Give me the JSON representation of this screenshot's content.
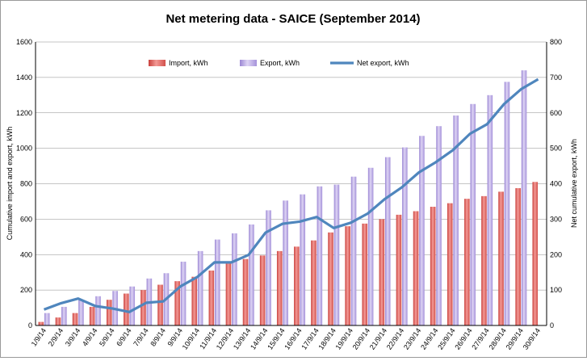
{
  "chart_data": {
    "type": "bar",
    "title": "Net metering data - SAICE (September 2014)",
    "categories": [
      "1/9/14",
      "2/9/14",
      "3/9/14",
      "4/9/14",
      "5/9/14",
      "6/9/14",
      "7/9/14",
      "8/9/14",
      "9/9/14",
      "10/9/14",
      "11/9/14",
      "12/9/14",
      "13/9/14",
      "14/9/14",
      "15/9/14",
      "16/9/14",
      "17/9/14",
      "18/9/14",
      "19/9/14",
      "20/9/14",
      "21/9/14",
      "22/9/14",
      "23/9/14",
      "24/9/14",
      "25/9/14",
      "26/9/14",
      "27/9/14",
      "28/9/14",
      "29/9/14",
      "30/9/14"
    ],
    "ylabel_left": "Cumulative import and export, kWh",
    "ylabel_right": "Net cumulative export, kWh",
    "ylim_left": [
      0,
      1600
    ],
    "ylim_right": [
      0,
      800
    ],
    "yticks_left": [
      "0",
      "200",
      "400",
      "600",
      "800",
      "1000",
      "1200",
      "1400",
      "1600"
    ],
    "yticks_right": [
      "0",
      "100",
      "200",
      "300",
      "400",
      "500",
      "600",
      "700",
      "800"
    ],
    "legend_position": "top-center",
    "grid": true,
    "series": [
      {
        "name": "Import, kWh",
        "kind": "bar",
        "axis": "left",
        "color": "#e8625e",
        "values": [
          20,
          45,
          70,
          105,
          145,
          180,
          200,
          230,
          250,
          275,
          310,
          350,
          375,
          395,
          420,
          445,
          480,
          525,
          560,
          575,
          600,
          625,
          645,
          670,
          690,
          715,
          730,
          755,
          775,
          810
        ]
      },
      {
        "name": "Export, kWh",
        "kind": "bar",
        "axis": "left",
        "color": "#a58fd8",
        "values": [
          70,
          105,
          145,
          165,
          195,
          220,
          265,
          295,
          360,
          420,
          485,
          520,
          570,
          650,
          705,
          740,
          785,
          795,
          840,
          890,
          950,
          1005,
          1070,
          1125,
          1185,
          1250,
          1300,
          1375,
          1440,
          0
        ]
      },
      {
        "name": "Net export, kWh",
        "kind": "line",
        "axis": "right",
        "color": "#4f86bd",
        "values": [
          45,
          63,
          76,
          55,
          48,
          38,
          64,
          68,
          110,
          137,
          178,
          178,
          199,
          262,
          287,
          293,
          306,
          275,
          290,
          316,
          357,
          390,
          432,
          461,
          495,
          541,
          568,
          625,
          667,
          695
        ]
      }
    ]
  }
}
